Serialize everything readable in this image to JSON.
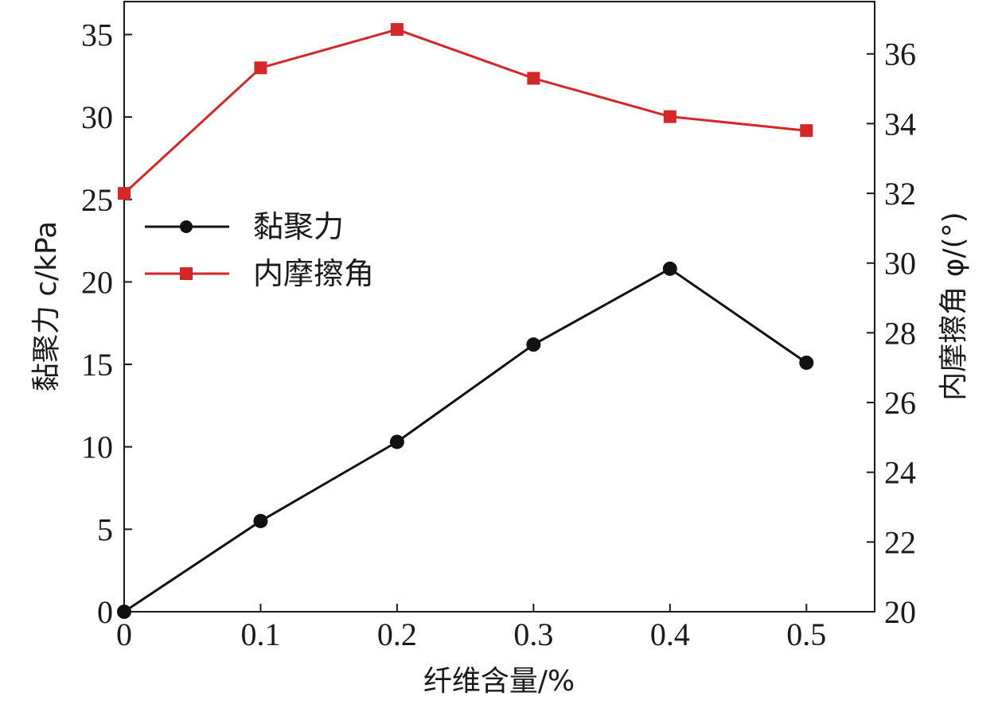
{
  "chart_data": {
    "type": "line",
    "x": [
      0,
      0.1,
      0.2,
      0.3,
      0.4,
      0.5
    ],
    "xlabel": "纤维含量/%",
    "xlim": [
      0,
      0.55
    ],
    "xticks": [
      "0",
      "0.1",
      "0.2",
      "0.3",
      "0.4",
      "0.5"
    ],
    "ylabel_left": "黏聚力 c/kPa",
    "ylim_left": [
      0,
      37
    ],
    "yticks_left": [
      "0",
      "5",
      "10",
      "15",
      "20",
      "25",
      "30",
      "35"
    ],
    "ylabel_right": "内摩擦角 φ/(°)",
    "ylim_right": [
      20,
      37.5
    ],
    "yticks_right": [
      "20",
      "22",
      "24",
      "26",
      "28",
      "30",
      "32",
      "34",
      "36"
    ],
    "legend_position": "center-left",
    "grid": false,
    "series": [
      {
        "name": "黏聚力",
        "axis": "left",
        "color": "#111111",
        "marker": "circle",
        "values": [
          0,
          5.5,
          10.3,
          16.2,
          20.8,
          15.1
        ]
      },
      {
        "name": "内摩擦角",
        "axis": "right",
        "color": "#d62728",
        "marker": "square",
        "values": [
          32.0,
          35.6,
          36.7,
          35.3,
          34.2,
          33.8
        ]
      }
    ]
  }
}
